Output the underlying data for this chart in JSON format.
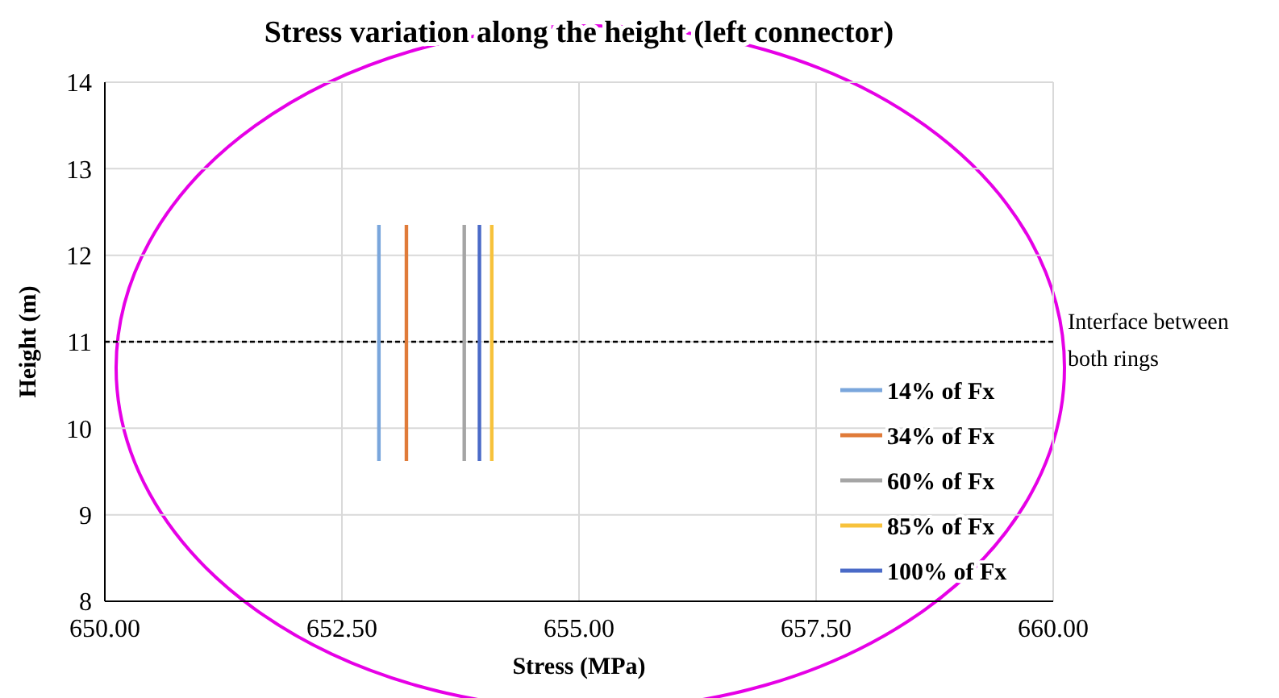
{
  "chart_data": {
    "type": "line",
    "title": "Stress variation along the height (left connector)",
    "xlabel": "Stress (MPa)",
    "ylabel": "Height (m)",
    "xlim": [
      650,
      660
    ],
    "xticks": [
      {
        "value": 650,
        "label": "650.00"
      },
      {
        "value": 652.5,
        "label": "652.50"
      },
      {
        "value": 655,
        "label": "655.00"
      },
      {
        "value": 657.5,
        "label": "657.50"
      },
      {
        "value": 660,
        "label": "660.00"
      }
    ],
    "ylim": [
      8,
      14
    ],
    "yticks": [
      8,
      9,
      10,
      11,
      12,
      13,
      14
    ],
    "grid": true,
    "legend": "bottom right",
    "marker": "none",
    "line_style": "solid",
    "series": [
      {
        "name": "14% of Fx",
        "color": "#7aa6dc",
        "x": [
          652.89,
          652.89
        ],
        "values": [
          9.62,
          12.35
        ]
      },
      {
        "name": "34% of Fx",
        "color": "#e07b39",
        "x": [
          653.18,
          653.18
        ],
        "values": [
          9.62,
          12.35
        ]
      },
      {
        "name": "60% of Fx",
        "color": "#a5a5a5",
        "x": [
          653.79,
          653.79
        ],
        "values": [
          9.62,
          12.35
        ]
      },
      {
        "name": "85% of Fx",
        "color": "#f7c23c",
        "x": [
          654.08,
          654.08
        ],
        "values": [
          9.62,
          12.35
        ]
      },
      {
        "name": "100% of Fx",
        "color": "#4a6ac7",
        "x": [
          653.95,
          653.95
        ],
        "values": [
          9.62,
          12.35
        ]
      }
    ],
    "ref_lines": [
      {
        "axis": "y",
        "value": 11,
        "label": "Interface between both rings",
        "color": "#000000",
        "line_style": "dashed"
      }
    ]
  }
}
